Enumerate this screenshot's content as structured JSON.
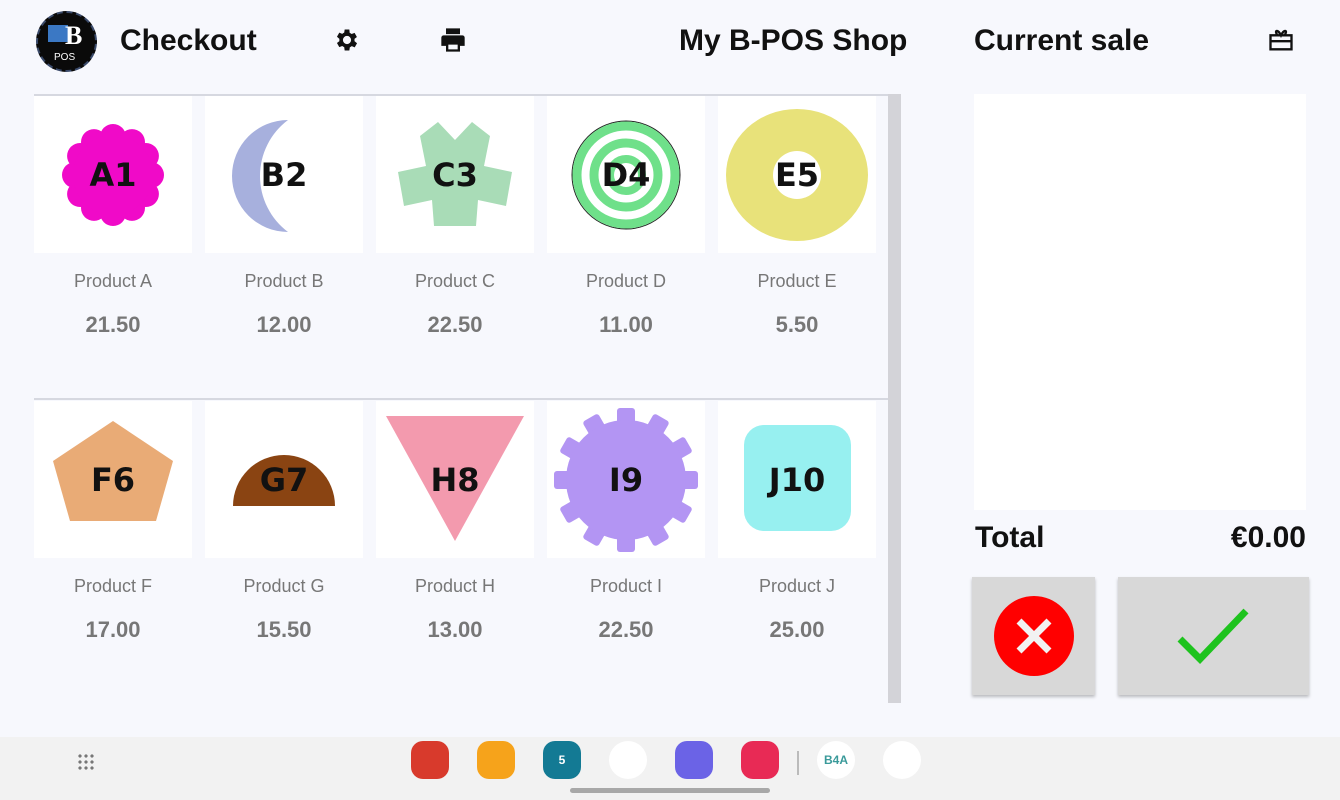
{
  "header": {
    "logo_text": "POS",
    "title": "Checkout",
    "shop_name": "My B-POS Shop",
    "sale_title": "Current sale"
  },
  "products": [
    {
      "code": "A1",
      "name": "Product A",
      "price": "21.50",
      "shape": "flower",
      "color": "#f00ac8"
    },
    {
      "code": "B2",
      "name": "Product B",
      "price": "12.00",
      "shape": "moon",
      "color": "#a7b0dd"
    },
    {
      "code": "C3",
      "name": "Product C",
      "price": "22.50",
      "shape": "cross-star",
      "color": "#a9dcb7"
    },
    {
      "code": "D4",
      "name": "Product D",
      "price": "11.00",
      "shape": "spiral",
      "color": "#6fe08a"
    },
    {
      "code": "E5",
      "name": "Product E",
      "price": "5.50",
      "shape": "donut",
      "color": "#e8e27a"
    },
    {
      "code": "F6",
      "name": "Product F",
      "price": "17.00",
      "shape": "pentagon",
      "color": "#e9ab76"
    },
    {
      "code": "G7",
      "name": "Product G",
      "price": "15.50",
      "shape": "half-circle",
      "color": "#8a4412"
    },
    {
      "code": "H8",
      "name": "Product H",
      "price": "13.00",
      "shape": "triangle-down",
      "color": "#f39aae"
    },
    {
      "code": "I9",
      "name": "Product I",
      "price": "22.50",
      "shape": "gear",
      "color": "#b395f3"
    },
    {
      "code": "J10",
      "name": "Product J",
      "price": "25.00",
      "shape": "rounded-square",
      "color": "#97f0f0"
    }
  ],
  "sale": {
    "total_label": "Total",
    "total_value": "€0.00",
    "cancel_color": "#ff0000",
    "confirm_color": "#1ec31e"
  },
  "taskbar": {
    "apps": [
      {
        "name": "notes",
        "color": "#d83a2c"
      },
      {
        "name": "files",
        "color": "#f6a31b"
      },
      {
        "name": "calendar",
        "color": "#137a94",
        "label": "5"
      },
      {
        "name": "messages",
        "color": "#ffffff"
      },
      {
        "name": "internet",
        "color": "#6b63e6"
      },
      {
        "name": "screen-recorder",
        "color": "#e82a55"
      },
      {
        "name": "b4a",
        "color": "#ffffff",
        "label": "B4A"
      },
      {
        "name": "b4a-bridge",
        "color": "#ffffff"
      }
    ]
  }
}
